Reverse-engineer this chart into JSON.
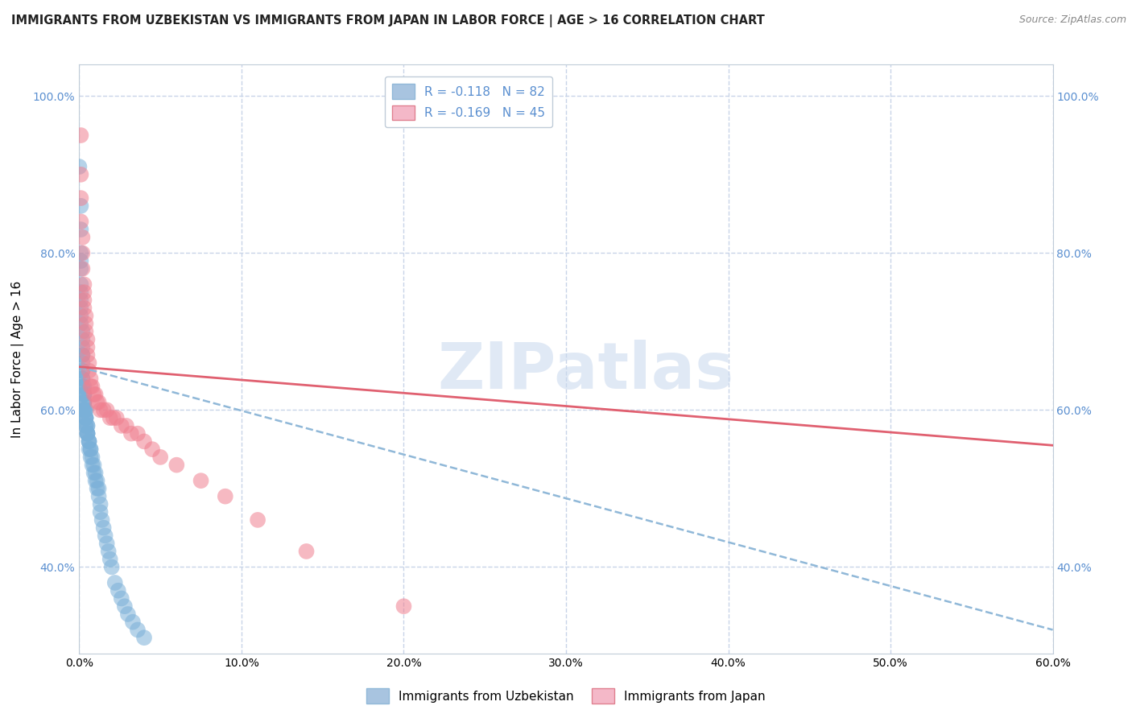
{
  "title": "IMMIGRANTS FROM UZBEKISTAN VS IMMIGRANTS FROM JAPAN IN LABOR FORCE | AGE > 16 CORRELATION CHART",
  "source": "Source: ZipAtlas.com",
  "ylabel": "In Labor Force | Age > 16",
  "watermark": "ZIPatlas",
  "uzbekistan": {
    "R": -0.118,
    "N": 82,
    "color": "#a8c4e0",
    "scatter_color": "#7ab0d8",
    "x": [
      0.0,
      0.001,
      0.001,
      0.001,
      0.001,
      0.001,
      0.001,
      0.001,
      0.001,
      0.001,
      0.001,
      0.001,
      0.002,
      0.002,
      0.002,
      0.002,
      0.002,
      0.002,
      0.002,
      0.002,
      0.002,
      0.002,
      0.002,
      0.002,
      0.003,
      0.003,
      0.003,
      0.003,
      0.003,
      0.003,
      0.003,
      0.003,
      0.003,
      0.003,
      0.004,
      0.004,
      0.004,
      0.004,
      0.004,
      0.004,
      0.004,
      0.004,
      0.005,
      0.005,
      0.005,
      0.005,
      0.005,
      0.005,
      0.006,
      0.006,
      0.006,
      0.006,
      0.007,
      0.007,
      0.007,
      0.008,
      0.008,
      0.009,
      0.009,
      0.01,
      0.01,
      0.011,
      0.011,
      0.012,
      0.012,
      0.013,
      0.013,
      0.014,
      0.015,
      0.016,
      0.017,
      0.018,
      0.019,
      0.02,
      0.022,
      0.024,
      0.026,
      0.028,
      0.03,
      0.033,
      0.036,
      0.04
    ],
    "y": [
      0.91,
      0.86,
      0.83,
      0.8,
      0.79,
      0.78,
      0.76,
      0.75,
      0.74,
      0.73,
      0.72,
      0.71,
      0.7,
      0.69,
      0.68,
      0.67,
      0.67,
      0.66,
      0.65,
      0.65,
      0.64,
      0.64,
      0.63,
      0.63,
      0.63,
      0.62,
      0.62,
      0.62,
      0.61,
      0.61,
      0.61,
      0.6,
      0.6,
      0.6,
      0.6,
      0.6,
      0.59,
      0.59,
      0.59,
      0.59,
      0.58,
      0.58,
      0.58,
      0.58,
      0.57,
      0.57,
      0.57,
      0.57,
      0.56,
      0.56,
      0.56,
      0.55,
      0.55,
      0.55,
      0.54,
      0.54,
      0.53,
      0.53,
      0.52,
      0.52,
      0.51,
      0.51,
      0.5,
      0.5,
      0.49,
      0.48,
      0.47,
      0.46,
      0.45,
      0.44,
      0.43,
      0.42,
      0.41,
      0.4,
      0.38,
      0.37,
      0.36,
      0.35,
      0.34,
      0.33,
      0.32,
      0.31
    ],
    "trend_x0": 0.0,
    "trend_y0": 0.655,
    "trend_x1": 0.6,
    "trend_y1": 0.32
  },
  "japan": {
    "R": -0.169,
    "N": 45,
    "color": "#f4b8c8",
    "scatter_color": "#f08090",
    "x": [
      0.001,
      0.001,
      0.001,
      0.001,
      0.002,
      0.002,
      0.002,
      0.003,
      0.003,
      0.003,
      0.003,
      0.004,
      0.004,
      0.004,
      0.005,
      0.005,
      0.005,
      0.006,
      0.006,
      0.007,
      0.007,
      0.008,
      0.009,
      0.01,
      0.011,
      0.012,
      0.013,
      0.015,
      0.017,
      0.019,
      0.021,
      0.023,
      0.026,
      0.029,
      0.032,
      0.036,
      0.04,
      0.045,
      0.05,
      0.06,
      0.075,
      0.09,
      0.11,
      0.14,
      0.2
    ],
    "y": [
      0.95,
      0.9,
      0.87,
      0.84,
      0.82,
      0.8,
      0.78,
      0.76,
      0.75,
      0.74,
      0.73,
      0.72,
      0.71,
      0.7,
      0.69,
      0.68,
      0.67,
      0.66,
      0.65,
      0.64,
      0.63,
      0.63,
      0.62,
      0.62,
      0.61,
      0.61,
      0.6,
      0.6,
      0.6,
      0.59,
      0.59,
      0.59,
      0.58,
      0.58,
      0.57,
      0.57,
      0.56,
      0.55,
      0.54,
      0.53,
      0.51,
      0.49,
      0.46,
      0.42,
      0.35
    ],
    "trend_x0": 0.0,
    "trend_y0": 0.655,
    "trend_x1": 0.6,
    "trend_y1": 0.555
  },
  "xlim": [
    0.0,
    0.6
  ],
  "ylim": [
    0.29,
    1.04
  ],
  "x_ticks": [
    0.0,
    0.1,
    0.2,
    0.3,
    0.4,
    0.5,
    0.6
  ],
  "x_tick_labels": [
    "0.0%",
    "10.0%",
    "20.0%",
    "30.0%",
    "40.0%",
    "50.0%",
    "60.0%"
  ],
  "y_ticks": [
    0.4,
    0.6,
    0.8,
    1.0
  ],
  "y_tick_labels": [
    "40.0%",
    "60.0%",
    "80.0%",
    "100.0%"
  ],
  "legend_uzbekistan": "Immigrants from Uzbekistan",
  "legend_japan": "Immigrants from Japan",
  "background_color": "#ffffff",
  "grid_color": "#c8d4e8",
  "axis_label_color": "#5a8fd0",
  "title_color": "#222222",
  "source_color": "#888888"
}
